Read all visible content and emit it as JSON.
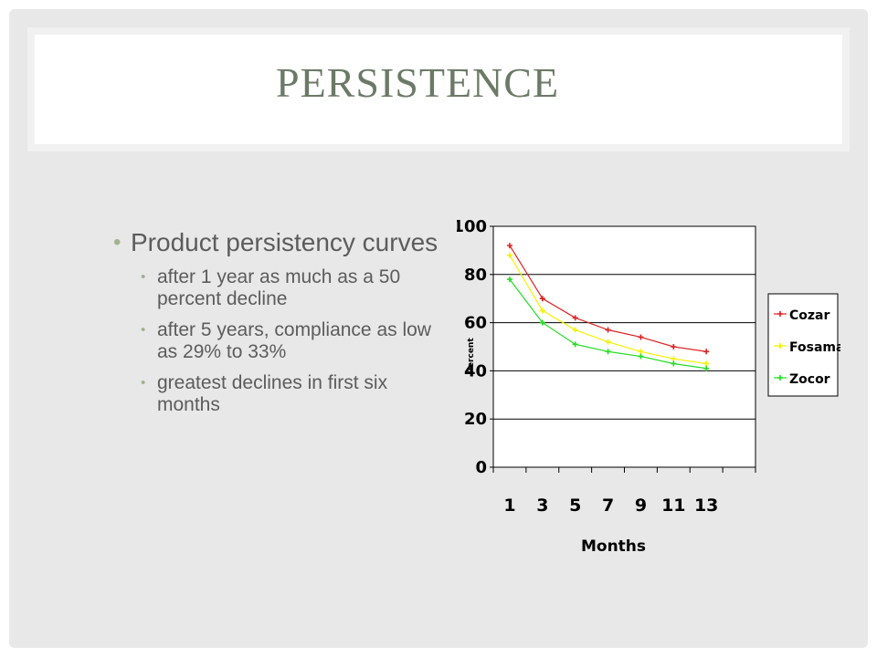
{
  "slide": {
    "title": "PERSISTENCE",
    "bullet": "Product persistency curves",
    "sub_bullets": [
      "after 1 year as much as a 50 percent decline",
      "after 5 years, compliance as low as 29% to 33%",
      "greatest declines in first six months"
    ]
  },
  "colors": {
    "background": "#e8e8e8",
    "title": "#6b7a67",
    "body_text": "#5c5c5c",
    "bullet": "#a3b28f"
  },
  "chart_data": {
    "type": "line",
    "x": [
      1,
      3,
      5,
      7,
      9,
      11,
      13
    ],
    "x_tick_labels": [
      "1",
      "3",
      "5",
      "7",
      "9",
      "11",
      "13"
    ],
    "xlabel": "Months",
    "ylabel": "Percent",
    "ylim": [
      0,
      100
    ],
    "y_ticks": [
      0,
      20,
      40,
      60,
      80,
      100
    ],
    "grid": "horizontal",
    "legend": "right",
    "series": [
      {
        "name": "Cozar",
        "color": "#dd2222",
        "values": [
          92,
          70,
          62,
          57,
          54,
          50,
          48
        ]
      },
      {
        "name": "Fosamax",
        "color": "#f2f200",
        "values": [
          88,
          65,
          57,
          52,
          48,
          45,
          43
        ]
      },
      {
        "name": "Zocor",
        "color": "#22dd22",
        "values": [
          78,
          60,
          51,
          48,
          46,
          43,
          41
        ]
      }
    ]
  }
}
